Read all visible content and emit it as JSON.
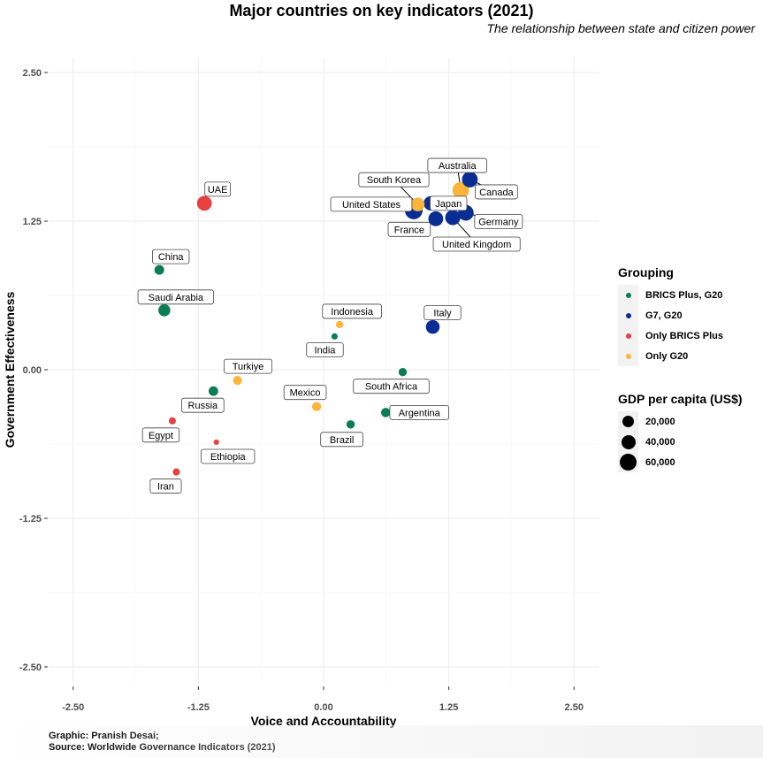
{
  "chart_data": {
    "type": "scatter",
    "title": "Major countries on key indicators (2021)",
    "subtitle": "The relationship between state and citizen power",
    "xlabel": "Voice and Accountability",
    "ylabel": "Government Effectiveness",
    "xlim": [
      -2.5,
      2.5
    ],
    "ylim": [
      -2.5,
      2.5
    ],
    "xticks": [
      "-2.50",
      "-1.25",
      "0.00",
      "1.25",
      "2.50"
    ],
    "yticks": [
      "2.50",
      "1.25",
      "0.00",
      "-1.25",
      "-2.50"
    ],
    "grid": true,
    "caption_lines": [
      "Graphic: Pranish Desai;",
      "Source: Worldwide Governance Indicators (2021)"
    ],
    "legend_color": {
      "title": "Grouping",
      "position": "right",
      "entries": [
        {
          "label": "BRICS Plus, G20",
          "color": "#0a7d55"
        },
        {
          "label": "G7, G20",
          "color": "#0a2d94"
        },
        {
          "label": "Only BRICS Plus",
          "color": "#e84040"
        },
        {
          "label": "Only G20",
          "color": "#fbb53a"
        }
      ]
    },
    "legend_size": {
      "title": "GDP per capita (US$)",
      "position": "right",
      "entries": [
        {
          "label": "20,000",
          "value": 20000
        },
        {
          "label": "40,000",
          "value": 40000
        },
        {
          "label": "60,000",
          "value": 60000
        }
      ]
    },
    "points": [
      {
        "country": "Canada",
        "group": "G7, G20",
        "x": 1.46,
        "y": 1.6,
        "gdp": 52000
      },
      {
        "country": "Australia",
        "group": "Only G20",
        "x": 1.37,
        "y": 1.51,
        "gdp": 60000
      },
      {
        "country": "Germany",
        "group": "G7, G20",
        "x": 1.42,
        "y": 1.32,
        "gdp": 51000
      },
      {
        "country": "United Kingdom",
        "group": "G7, G20",
        "x": 1.29,
        "y": 1.28,
        "gdp": 47000
      },
      {
        "country": "France",
        "group": "G7, G20",
        "x": 1.12,
        "y": 1.27,
        "gdp": 44000
      },
      {
        "country": "Japan",
        "group": "G7, G20",
        "x": 1.07,
        "y": 1.4,
        "gdp": 40000
      },
      {
        "country": "South Korea",
        "group": "Only G20",
        "x": 0.94,
        "y": 1.39,
        "gdp": 35000
      },
      {
        "country": "United States",
        "group": "G7, G20",
        "x": 0.9,
        "y": 1.34,
        "gdp": 70000
      },
      {
        "country": "UAE",
        "group": "Only BRICS Plus",
        "x": -1.19,
        "y": 1.4,
        "gdp": 44000
      },
      {
        "country": "China",
        "group": "BRICS Plus, G20",
        "x": -1.64,
        "y": 0.84,
        "gdp": 12500
      },
      {
        "country": "Saudi Arabia",
        "group": "BRICS Plus, G20",
        "x": -1.59,
        "y": 0.5,
        "gdp": 24000
      },
      {
        "country": "Italy",
        "group": "G7, G20",
        "x": 1.09,
        "y": 0.36,
        "gdp": 36000
      },
      {
        "country": "Indonesia",
        "group": "Only G20",
        "x": 0.16,
        "y": 0.38,
        "gdp": 4300
      },
      {
        "country": "India",
        "group": "BRICS Plus, G20",
        "x": 0.11,
        "y": 0.28,
        "gdp": 2200
      },
      {
        "country": "South Africa",
        "group": "BRICS Plus, G20",
        "x": 0.79,
        "y": -0.02,
        "gdp": 7000
      },
      {
        "country": "Turkiye",
        "group": "Only G20",
        "x": -0.86,
        "y": -0.09,
        "gdp": 9600
      },
      {
        "country": "Russia",
        "group": "BRICS Plus, G20",
        "x": -1.1,
        "y": -0.18,
        "gdp": 12000
      },
      {
        "country": "Mexico",
        "group": "Only G20",
        "x": -0.07,
        "y": -0.31,
        "gdp": 10000
      },
      {
        "country": "Argentina",
        "group": "BRICS Plus, G20",
        "x": 0.62,
        "y": -0.36,
        "gdp": 10600
      },
      {
        "country": "Egypt",
        "group": "Only BRICS Plus",
        "x": -1.51,
        "y": -0.43,
        "gdp": 3900
      },
      {
        "country": "Brazil",
        "group": "BRICS Plus, G20",
        "x": 0.27,
        "y": -0.46,
        "gdp": 7500
      },
      {
        "country": "Ethiopia",
        "group": "Only BRICS Plus",
        "x": -1.07,
        "y": -0.61,
        "gdp": 900
      },
      {
        "country": "Iran",
        "group": "Only BRICS Plus",
        "x": -1.47,
        "y": -0.86,
        "gdp": 4000
      }
    ]
  }
}
